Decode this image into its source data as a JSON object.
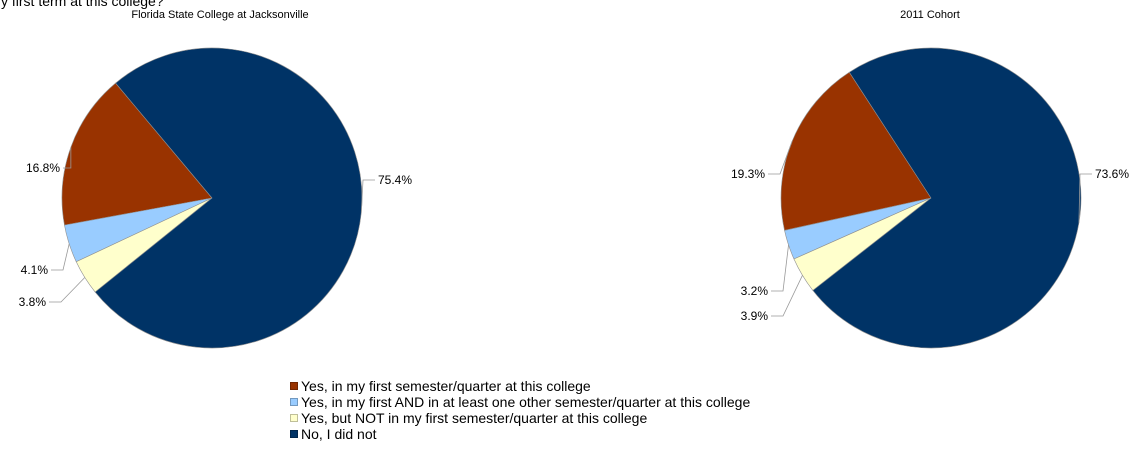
{
  "top_text": "y first term at this college?",
  "legend": [
    {
      "label": "Yes, in my first semester/quarter at this college",
      "color": "#993300"
    },
    {
      "label": "Yes, in my first AND in at least one other semester/quarter at this college",
      "color": "#99ccff"
    },
    {
      "label": "Yes, but NOT in my first semester/quarter at this college",
      "color": "#ffffcc"
    },
    {
      "label": "No, I did not",
      "color": "#003366"
    }
  ],
  "chart_data": [
    {
      "type": "pie",
      "title": "Florida State College at Jacksonville",
      "categories": [
        "Yes, in my first semester/quarter at this college",
        "Yes, in my first AND in at least one other semester/quarter at this college",
        "Yes, but NOT in my first semester/quarter at this college",
        "No, I did not"
      ],
      "values": [
        16.8,
        4.1,
        3.8,
        75.4
      ],
      "labels": [
        "16.8%",
        "4.1%",
        "3.8%",
        "75.4%"
      ],
      "colors": [
        "#993300",
        "#99ccff",
        "#ffffcc",
        "#003366"
      ]
    },
    {
      "type": "pie",
      "title": "2011 Cohort",
      "categories": [
        "Yes, in my first semester/quarter at this college",
        "Yes, in my first AND in at least one other semester/quarter at this college",
        "Yes, but NOT in my first semester/quarter at this college",
        "No, I did not"
      ],
      "values": [
        19.3,
        3.2,
        3.9,
        73.6
      ],
      "labels": [
        "19.3%",
        "3.2%",
        "3.9%",
        "73.6%"
      ],
      "colors": [
        "#993300",
        "#99ccff",
        "#ffffcc",
        "#003366"
      ]
    }
  ]
}
